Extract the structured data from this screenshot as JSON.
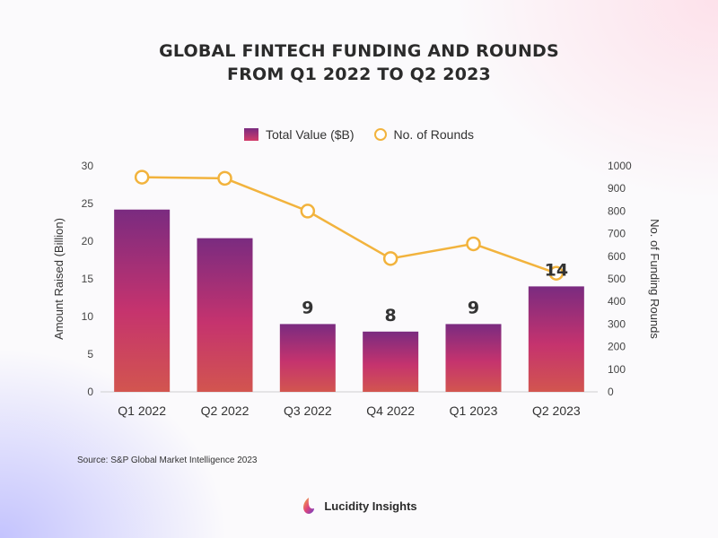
{
  "title_line1": "GLOBAL FINTECH FUNDING AND ROUNDS",
  "title_line2": "FROM Q1 2022 TO Q2 2023",
  "source": "Source: S&P Global Market Intelligence 2023",
  "brand": "Lucidity Insights",
  "colors": {
    "bar_top": "#7a2b80",
    "bar_mid": "#c5336e",
    "bar_bottom": "#d2554f",
    "line": "#f2b33d"
  },
  "chart_data": {
    "type": "bar",
    "categories": [
      "Q1 2022",
      "Q2 2022",
      "Q3 2022",
      "Q4 2022",
      "Q1 2023",
      "Q2 2023"
    ],
    "series": [
      {
        "name": "Total Value ($B)",
        "type": "bar",
        "axis": "left",
        "values": [
          24.2,
          20.4,
          9,
          8,
          9,
          14
        ],
        "data_labels": [
          "",
          "",
          "9",
          "8",
          "9",
          "14"
        ]
      },
      {
        "name": "No. of Rounds",
        "type": "line",
        "axis": "right",
        "values": [
          950,
          945,
          800,
          590,
          655,
          525
        ]
      }
    ],
    "ylabel": "Amount Raised (Billion)",
    "y2label": "No. of Funding Rounds",
    "ylim": [
      0,
      30
    ],
    "y2lim": [
      0,
      1000
    ],
    "yticks": [
      0,
      5,
      10,
      15,
      20,
      25,
      30
    ],
    "y2ticks": [
      0,
      100,
      200,
      300,
      400,
      500,
      600,
      700,
      800,
      900,
      1000
    ],
    "legend": "top-center",
    "grid": false
  }
}
